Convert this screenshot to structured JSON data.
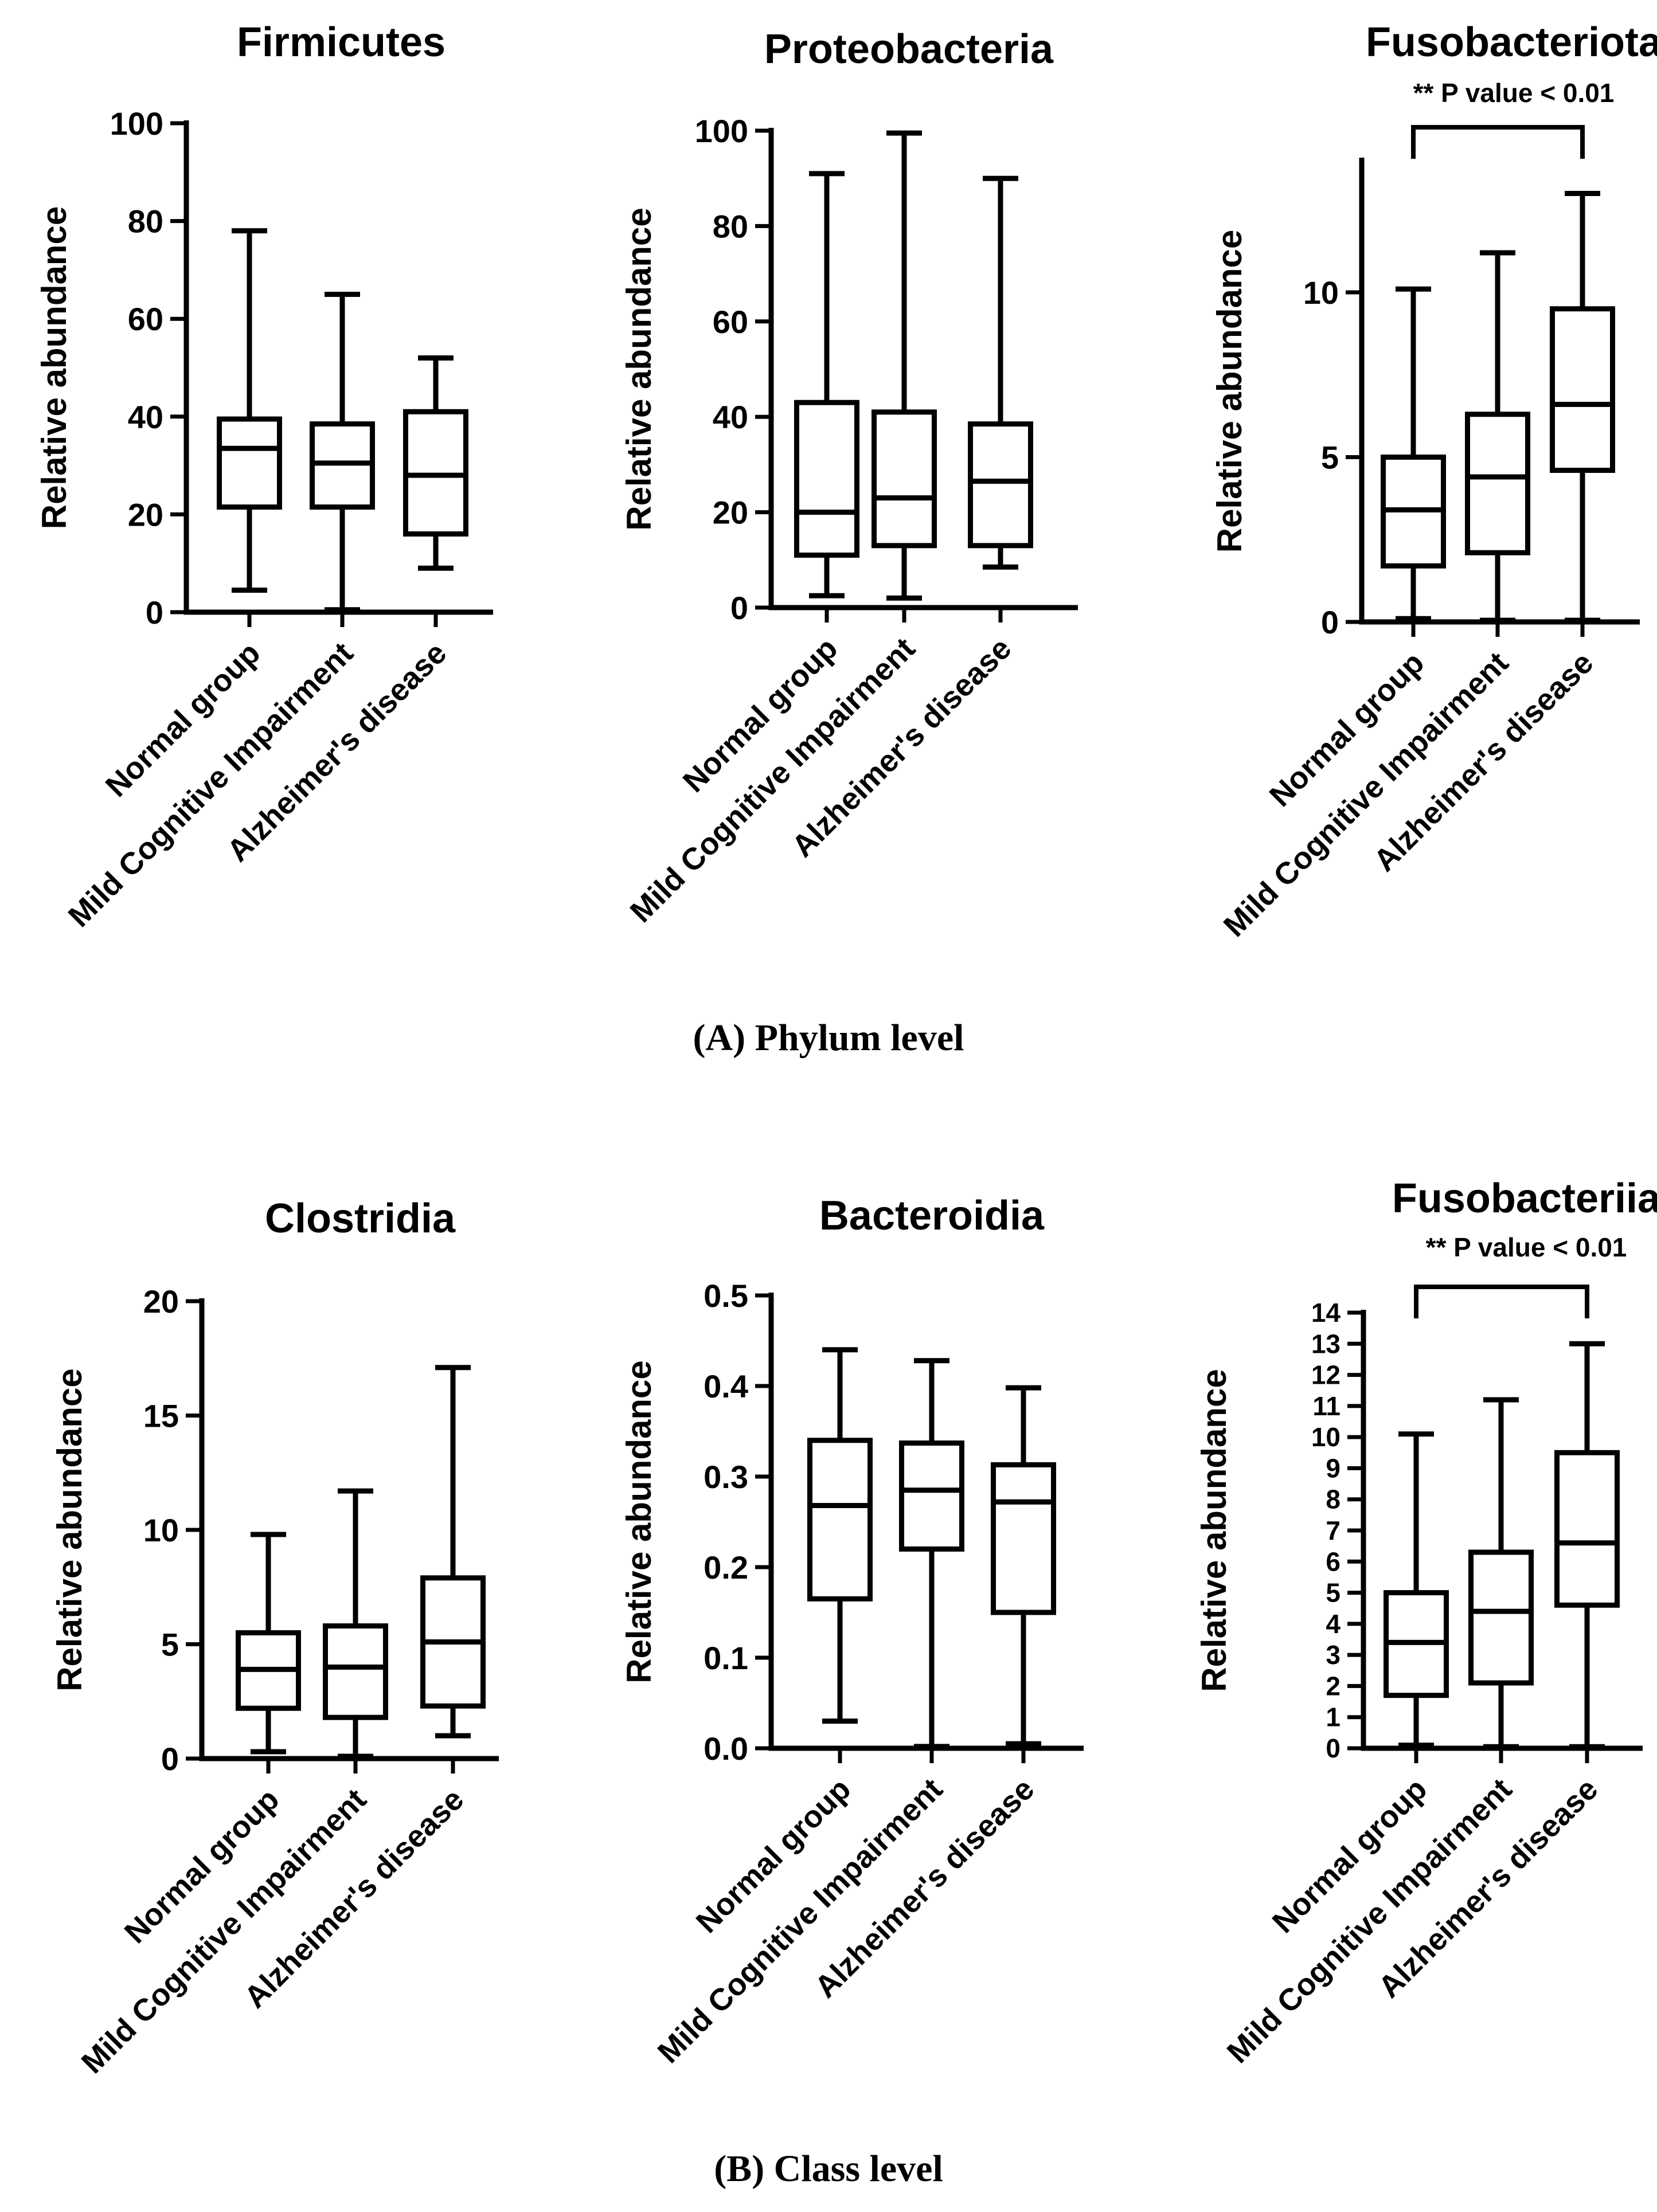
{
  "sections": {
    "phylum": "(A) Phylum level",
    "class": "(B) Class level"
  },
  "chart_data": [
    {
      "type": "box",
      "title": "Firmicutes",
      "subtitle": "",
      "ylabel": "Relative abundance",
      "categories": [
        "Normal group",
        "Mild Cognitive Impairment",
        "Alzheimer's disease"
      ],
      "ylim": [
        0,
        100
      ],
      "yticks": [
        0,
        20,
        40,
        60,
        80,
        100
      ],
      "boxes": [
        {
          "min": 4.5,
          "q1": 21.5,
          "median": 33.5,
          "q3": 39.5,
          "max": 78
        },
        {
          "min": 0.5,
          "q1": 21.5,
          "median": 30.5,
          "q3": 38.5,
          "max": 65
        },
        {
          "min": 9,
          "q1": 16,
          "median": 28,
          "q3": 41,
          "max": 52
        }
      ]
    },
    {
      "type": "box",
      "title": "Proteobacteria",
      "subtitle": "",
      "ylabel": "Relative abundance",
      "categories": [
        "Normal group",
        "Mild Cognitive Impairment",
        "Alzheimer's disease"
      ],
      "ylim": [
        0,
        100
      ],
      "yticks": [
        0,
        20,
        40,
        60,
        80,
        100
      ],
      "boxes": [
        {
          "min": 2.5,
          "q1": 11,
          "median": 20,
          "q3": 43,
          "max": 91
        },
        {
          "min": 2,
          "q1": 13,
          "median": 23,
          "q3": 41,
          "max": 99.5
        },
        {
          "min": 8.5,
          "q1": 13,
          "median": 26.5,
          "q3": 38.5,
          "max": 90
        }
      ]
    },
    {
      "type": "box",
      "title": "Fusobacteriota",
      "subtitle": "** P value < 0.01",
      "ylabel": "Relative abundance",
      "categories": [
        "Normal group",
        "Mild Cognitive Impairment",
        "Alzheimer's disease"
      ],
      "ylim": [
        0,
        14
      ],
      "yticks": [
        0,
        5,
        10
      ],
      "boxes": [
        {
          "min": 0.1,
          "q1": 1.7,
          "median": 3.4,
          "q3": 5.0,
          "max": 10.1
        },
        {
          "min": 0.05,
          "q1": 2.1,
          "median": 4.4,
          "q3": 6.3,
          "max": 11.2
        },
        {
          "min": 0.05,
          "q1": 4.6,
          "median": 6.6,
          "q3": 9.5,
          "max": 13.0
        }
      ],
      "bracket": {
        "from": 0,
        "to": 2,
        "y": 15.2
      }
    },
    {
      "type": "box",
      "title": "Clostridia",
      "subtitle": "",
      "ylabel": "Relative abundance",
      "categories": [
        "Normal group",
        "Mild Cognitive Impairment",
        "Alzheimer's disease"
      ],
      "ylim": [
        0,
        20
      ],
      "yticks": [
        0,
        5,
        10,
        15,
        20
      ],
      "boxes": [
        {
          "min": 0.3,
          "q1": 2.2,
          "median": 3.9,
          "q3": 5.5,
          "max": 9.8
        },
        {
          "min": 0.1,
          "q1": 1.8,
          "median": 4.0,
          "q3": 5.8,
          "max": 11.7
        },
        {
          "min": 1.0,
          "q1": 2.3,
          "median": 5.1,
          "q3": 7.9,
          "max": 17.1
        }
      ]
    },
    {
      "type": "box",
      "title": "Bacteroidia",
      "subtitle": "",
      "ylabel": "Relative abundance",
      "categories": [
        "Normal group",
        "Mild Cognitive Impairment",
        "Alzheimer's disease"
      ],
      "ylim": [
        0,
        0.5
      ],
      "yticks": [
        "0.0",
        "0.1",
        "0.2",
        "0.3",
        "0.4",
        "0.5"
      ],
      "boxes": [
        {
          "min": 0.03,
          "q1": 0.165,
          "median": 0.268,
          "q3": 0.34,
          "max": 0.44
        },
        {
          "min": 0.002,
          "q1": 0.22,
          "median": 0.285,
          "q3": 0.337,
          "max": 0.428
        },
        {
          "min": 0.005,
          "q1": 0.15,
          "median": 0.272,
          "q3": 0.313,
          "max": 0.398
        }
      ]
    },
    {
      "type": "box",
      "title": "Fusobacteriia",
      "subtitle": "** P value < 0.01",
      "ylabel": "Relative abundance",
      "categories": [
        "Normal group",
        "Mild Cognitive Impairment",
        "Alzheimer's disease"
      ],
      "ylim": [
        0,
        14
      ],
      "yticks": [
        0,
        1,
        2,
        3,
        4,
        5,
        6,
        7,
        8,
        9,
        10,
        11,
        12,
        13,
        14
      ],
      "boxes": [
        {
          "min": 0.1,
          "q1": 1.7,
          "median": 3.4,
          "q3": 5.0,
          "max": 10.1
        },
        {
          "min": 0.05,
          "q1": 2.1,
          "median": 4.4,
          "q3": 6.3,
          "max": 11.2
        },
        {
          "min": 0.05,
          "q1": 4.6,
          "median": 6.6,
          "q3": 9.5,
          "max": 13.0
        }
      ],
      "bracket": {
        "from": 0,
        "to": 2,
        "y": 14.0
      }
    }
  ]
}
